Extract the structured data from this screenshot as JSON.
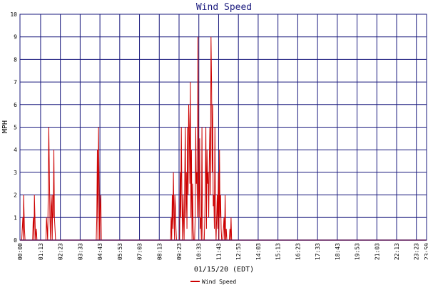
{
  "chart_data": {
    "type": "line",
    "title": "Wind Speed",
    "xlabel": "01/15/20 (EDT)",
    "ylabel": "MPH",
    "ylim": [
      0,
      10
    ],
    "yticks": [
      0,
      1,
      2,
      3,
      4,
      5,
      6,
      7,
      8,
      9,
      10
    ],
    "xlim": [
      "00:00",
      "23:59"
    ],
    "xticks": [
      "00:00",
      "01:13",
      "02:23",
      "03:33",
      "04:43",
      "05:53",
      "07:03",
      "08:13",
      "09:23",
      "10:33",
      "11:43",
      "12:53",
      "14:03",
      "15:13",
      "16:23",
      "17:33",
      "18:43",
      "19:53",
      "21:03",
      "22:13",
      "23:23",
      "23:59"
    ],
    "grid": true,
    "legend": "bottom-center",
    "colors": {
      "series": "#cc0000",
      "grid": "#1a1a7e",
      "title": "#1a1a7e"
    },
    "series": [
      {
        "name": "Wind Speed",
        "points": [
          [
            "00:06",
            0
          ],
          [
            "00:08",
            0.5
          ],
          [
            "00:10",
            1
          ],
          [
            "00:12",
            0
          ],
          [
            "00:13",
            2
          ],
          [
            "00:16",
            0.5
          ],
          [
            "00:18",
            0
          ],
          [
            "00:45",
            0
          ],
          [
            "00:47",
            1
          ],
          [
            "00:49",
            0.5
          ],
          [
            "00:50",
            0
          ],
          [
            "00:51",
            2
          ],
          [
            "00:53",
            1
          ],
          [
            "00:55",
            0
          ],
          [
            "00:58",
            0.5
          ],
          [
            "01:00",
            0
          ],
          [
            "01:32",
            0
          ],
          [
            "01:34",
            1
          ],
          [
            "01:36",
            0.5
          ],
          [
            "01:38",
            0
          ],
          [
            "01:40",
            2
          ],
          [
            "01:42",
            5
          ],
          [
            "01:44",
            3
          ],
          [
            "01:46",
            1
          ],
          [
            "01:48",
            0
          ],
          [
            "01:50",
            2
          ],
          [
            "01:52",
            1.5
          ],
          [
            "01:54",
            0
          ],
          [
            "01:56",
            2
          ],
          [
            "01:58",
            1
          ],
          [
            "02:00",
            4
          ],
          [
            "02:02",
            1
          ],
          [
            "02:04",
            0.5
          ],
          [
            "02:06",
            0
          ],
          [
            "04:30",
            0
          ],
          [
            "04:32",
            1
          ],
          [
            "04:34",
            4
          ],
          [
            "04:36",
            0
          ],
          [
            "04:38",
            5
          ],
          [
            "04:40",
            2.5
          ],
          [
            "04:42",
            0
          ],
          [
            "04:44",
            1.5
          ],
          [
            "04:46",
            2
          ],
          [
            "04:48",
            0
          ],
          [
            "08:53",
            0
          ],
          [
            "08:55",
            1
          ],
          [
            "08:57",
            0
          ],
          [
            "08:59",
            2
          ],
          [
            "09:01",
            0.5
          ],
          [
            "09:03",
            3
          ],
          [
            "09:05",
            1
          ],
          [
            "09:07",
            0
          ],
          [
            "09:08",
            2
          ],
          [
            "09:10",
            1.5
          ],
          [
            "09:12",
            0.5
          ],
          [
            "09:14",
            0
          ],
          [
            "09:25",
            0
          ],
          [
            "09:27",
            3
          ],
          [
            "09:29",
            1
          ],
          [
            "09:31",
            5
          ],
          [
            "09:33",
            2
          ],
          [
            "09:35",
            0
          ],
          [
            "09:37",
            2
          ],
          [
            "09:39",
            1
          ],
          [
            "09:41",
            0
          ],
          [
            "09:43",
            2.5
          ],
          [
            "09:45",
            5
          ],
          [
            "09:47",
            1
          ],
          [
            "09:49",
            3
          ],
          [
            "09:51",
            0.5
          ],
          [
            "09:53",
            5
          ],
          [
            "09:55",
            2
          ],
          [
            "09:57",
            6
          ],
          [
            "09:59",
            5
          ],
          [
            "10:01",
            2.5
          ],
          [
            "10:03",
            7
          ],
          [
            "10:05",
            1
          ],
          [
            "10:07",
            4
          ],
          [
            "10:09",
            0
          ],
          [
            "10:11",
            2.5
          ],
          [
            "10:13",
            0.5
          ],
          [
            "10:15",
            0
          ],
          [
            "10:18",
            0
          ],
          [
            "10:20",
            1
          ],
          [
            "10:22",
            5
          ],
          [
            "10:24",
            2.5
          ],
          [
            "10:26",
            3
          ],
          [
            "10:28",
            1
          ],
          [
            "10:30",
            9
          ],
          [
            "10:32",
            2
          ],
          [
            "10:34",
            1
          ],
          [
            "10:36",
            4.5
          ],
          [
            "10:38",
            0.5
          ],
          [
            "10:40",
            1
          ],
          [
            "10:42",
            0
          ],
          [
            "10:44",
            5
          ],
          [
            "10:46",
            0.5
          ],
          [
            "10:48",
            0
          ],
          [
            "10:52",
            0
          ],
          [
            "10:54",
            1
          ],
          [
            "10:56",
            2.5
          ],
          [
            "10:58",
            5
          ],
          [
            "11:00",
            0.5
          ],
          [
            "11:02",
            4
          ],
          [
            "11:04",
            2.5
          ],
          [
            "11:06",
            3
          ],
          [
            "11:08",
            1
          ],
          [
            "11:10",
            3.5
          ],
          [
            "11:12",
            5
          ],
          [
            "11:14",
            2
          ],
          [
            "11:16",
            9
          ],
          [
            "11:18",
            7
          ],
          [
            "11:20",
            3
          ],
          [
            "11:22",
            6
          ],
          [
            "11:24",
            1.5
          ],
          [
            "11:26",
            2
          ],
          [
            "11:28",
            0.5
          ],
          [
            "11:30",
            5
          ],
          [
            "11:32",
            1
          ],
          [
            "11:34",
            0
          ],
          [
            "11:36",
            1
          ],
          [
            "11:38",
            2
          ],
          [
            "11:40",
            0.5
          ],
          [
            "11:42",
            3
          ],
          [
            "11:44",
            0
          ],
          [
            "11:46",
            4
          ],
          [
            "11:48",
            1
          ],
          [
            "11:50",
            2
          ],
          [
            "11:52",
            0.5
          ],
          [
            "11:54",
            0
          ],
          [
            "11:58",
            0
          ],
          [
            "12:00",
            0.5
          ],
          [
            "12:02",
            1
          ],
          [
            "12:04",
            0
          ],
          [
            "12:06",
            2
          ],
          [
            "12:08",
            0
          ],
          [
            "12:10",
            0.5
          ],
          [
            "12:12",
            0
          ],
          [
            "12:21",
            0
          ],
          [
            "12:23",
            0.5
          ],
          [
            "12:25",
            0
          ],
          [
            "12:27",
            1
          ],
          [
            "12:29",
            0
          ]
        ]
      }
    ]
  }
}
